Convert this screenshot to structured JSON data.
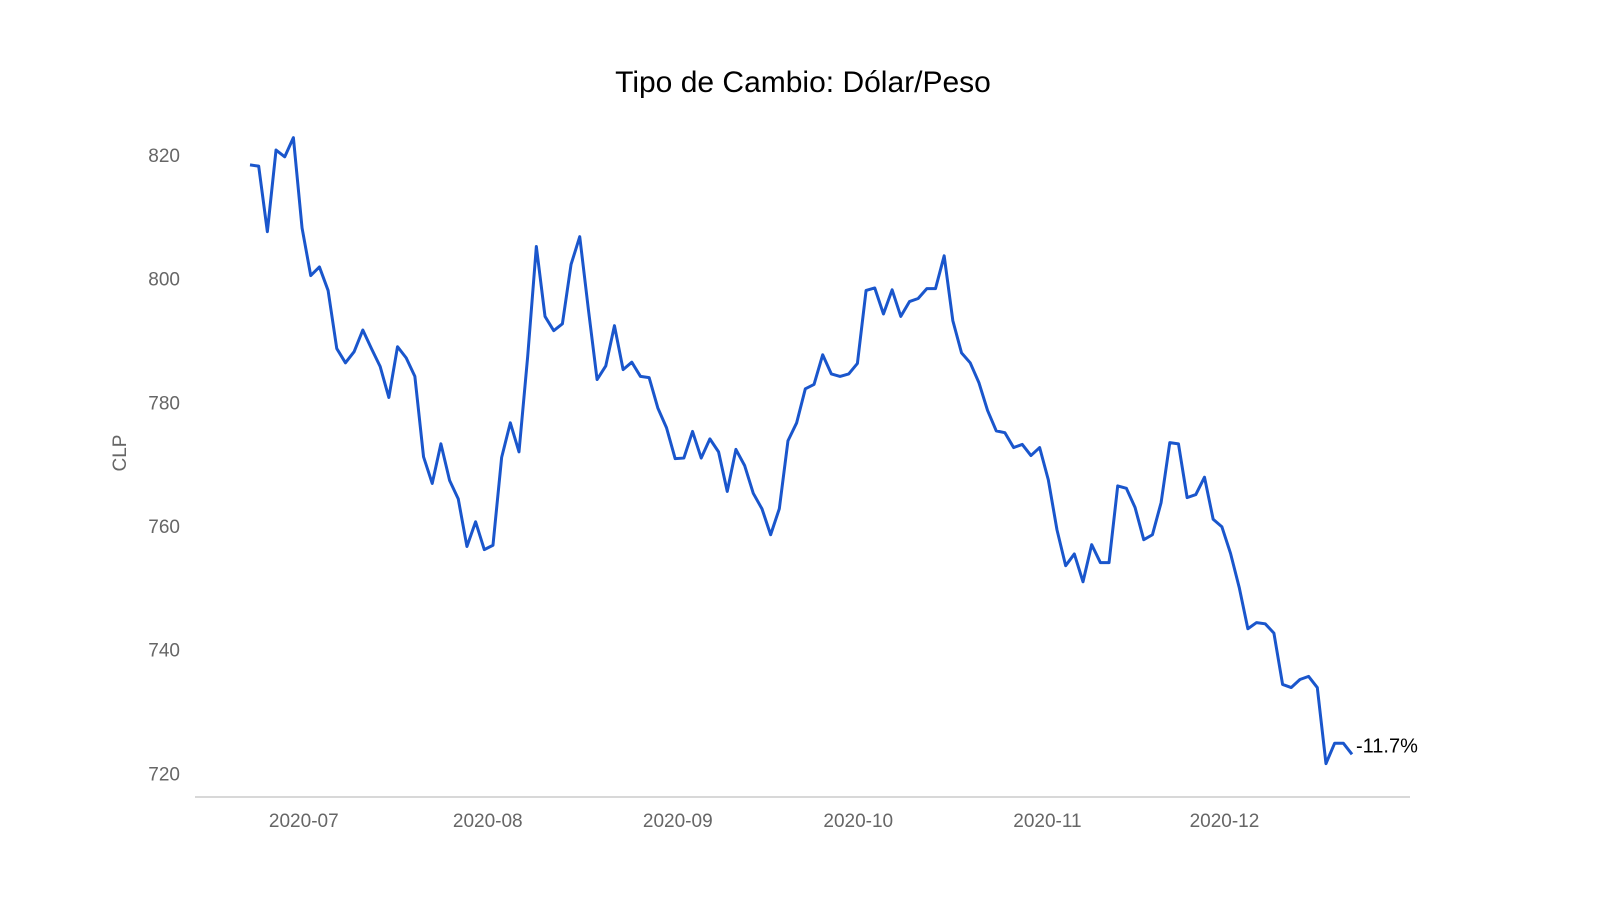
{
  "chart_data": {
    "type": "line",
    "title": "Tipo de Cambio: Dólar/Peso",
    "y_label": "CLP",
    "annotation": "-11.7%",
    "series": [
      {
        "name": "CLP",
        "color": "#1a56cc",
        "values": [
          818.7,
          818.5,
          807.9,
          821.1,
          820,
          823.1,
          808.5,
          800.8,
          802.2,
          798.4,
          789,
          786.7,
          788.5,
          792,
          789,
          786.1,
          781.1,
          789.3,
          787.5,
          784.5,
          771.5,
          767.2,
          773.6,
          767.7,
          764.7,
          757,
          761,
          756.5,
          757.2,
          771.4,
          777,
          772.3,
          787.7,
          805.5,
          794.2,
          791.9,
          793,
          802.6,
          807.1,
          795.3,
          784,
          786.2,
          792.7,
          785.6,
          786.8,
          784.5,
          784.3,
          779.4,
          776.2,
          771.2,
          771.3,
          775.6,
          771.3,
          774.4,
          772.3,
          765.9,
          772.7,
          770.1,
          765.6,
          763.1,
          758.9,
          763.1,
          774.1,
          777,
          782.5,
          783.2,
          788,
          784.9,
          784.5,
          784.9,
          786.6,
          798.4,
          798.8,
          794.6,
          798.5,
          794.2,
          796.6,
          797.1,
          798.7,
          798.7,
          804,
          793.5,
          788.3,
          786.7,
          783.5,
          779,
          775.7,
          775.4,
          773,
          773.5,
          771.7,
          773,
          767.8,
          759.7,
          753.9,
          755.8,
          751.3,
          757.3,
          754.4,
          754.4,
          766.8,
          766.4,
          763.3,
          758.1,
          758.9,
          764.1,
          773.8,
          773.6,
          764.9,
          765.4,
          768.2,
          761.4,
          760.2,
          755.9,
          750.4,
          743.7,
          744.7,
          744.5,
          743,
          734.7,
          734.2,
          735.5,
          736,
          734.2,
          721.9,
          725.2,
          725.2,
          723.4
        ]
      }
    ],
    "xlim": [
      0,
      127
    ],
    "xticks": [
      {
        "value": 6.2,
        "label": "2020-07"
      },
      {
        "value": 27.4,
        "label": "2020-08"
      },
      {
        "value": 49.3,
        "label": "2020-09"
      },
      {
        "value": 70.1,
        "label": "2020-10"
      },
      {
        "value": 91.9,
        "label": "2020-11"
      },
      {
        "value": 112.3,
        "label": "2020-12"
      }
    ],
    "ylim": [
      716.5,
      830
    ],
    "yticks": [
      720,
      740,
      760,
      780,
      800,
      820
    ],
    "grid": false
  }
}
